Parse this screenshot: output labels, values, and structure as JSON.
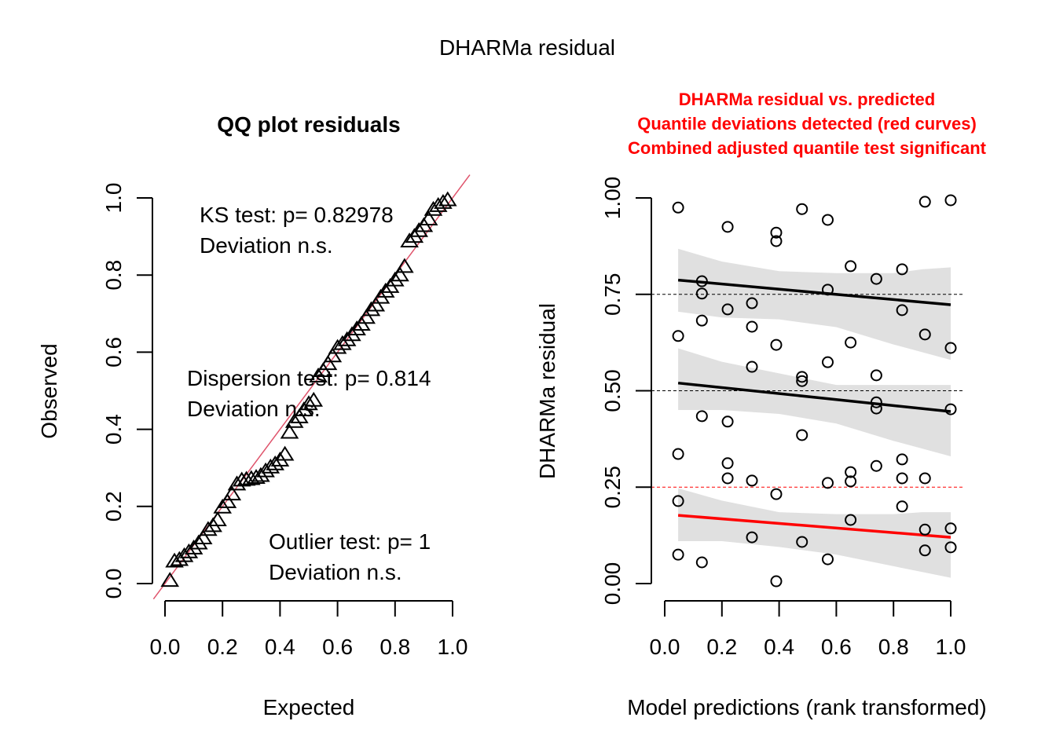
{
  "figure": {
    "title": "DHARMa residual"
  },
  "chart_data": [
    {
      "type": "scatter",
      "title": "QQ plot residuals",
      "xlabel": "Expected",
      "ylabel": "Observed",
      "xlim": [
        0,
        1
      ],
      "ylim": [
        0,
        1
      ],
      "xticks": [
        "0.0",
        "0.2",
        "0.4",
        "0.6",
        "0.8",
        "1.0"
      ],
      "yticks": [
        "0.0",
        "0.2",
        "0.4",
        "0.6",
        "0.8",
        "1.0"
      ],
      "marker": "triangle",
      "reference_line": {
        "from": [
          0,
          0
        ],
        "to": [
          1,
          1
        ],
        "color": "#df536b"
      },
      "annotations": [
        {
          "name": "ks-test",
          "lines": [
            "KS test: p= 0.82978",
            "Deviation  n.s."
          ]
        },
        {
          "name": "dispersion-test",
          "lines": [
            "Dispersion test: p= 0.814",
            "Deviation  n.s."
          ]
        },
        {
          "name": "outlier-test",
          "lines": [
            "Outlier test: p= 1",
            "Deviation  n.s."
          ]
        }
      ],
      "points": [
        {
          "x": 0.017,
          "y": 0.008
        },
        {
          "x": 0.033,
          "y": 0.058
        },
        {
          "x": 0.05,
          "y": 0.062
        },
        {
          "x": 0.067,
          "y": 0.072
        },
        {
          "x": 0.083,
          "y": 0.082
        },
        {
          "x": 0.1,
          "y": 0.092
        },
        {
          "x": 0.117,
          "y": 0.105
        },
        {
          "x": 0.133,
          "y": 0.118
        },
        {
          "x": 0.15,
          "y": 0.14
        },
        {
          "x": 0.167,
          "y": 0.15
        },
        {
          "x": 0.183,
          "y": 0.165
        },
        {
          "x": 0.2,
          "y": 0.198
        },
        {
          "x": 0.217,
          "y": 0.212
        },
        {
          "x": 0.233,
          "y": 0.232
        },
        {
          "x": 0.25,
          "y": 0.258
        },
        {
          "x": 0.267,
          "y": 0.268
        },
        {
          "x": 0.283,
          "y": 0.27
        },
        {
          "x": 0.3,
          "y": 0.272
        },
        {
          "x": 0.317,
          "y": 0.275
        },
        {
          "x": 0.333,
          "y": 0.28
        },
        {
          "x": 0.35,
          "y": 0.292
        },
        {
          "x": 0.367,
          "y": 0.302
        },
        {
          "x": 0.383,
          "y": 0.31
        },
        {
          "x": 0.4,
          "y": 0.32
        },
        {
          "x": 0.417,
          "y": 0.335
        },
        {
          "x": 0.433,
          "y": 0.392
        },
        {
          "x": 0.45,
          "y": 0.42
        },
        {
          "x": 0.467,
          "y": 0.432
        },
        {
          "x": 0.483,
          "y": 0.45
        },
        {
          "x": 0.5,
          "y": 0.466
        },
        {
          "x": 0.517,
          "y": 0.475
        },
        {
          "x": 0.533,
          "y": 0.538
        },
        {
          "x": 0.55,
          "y": 0.552
        },
        {
          "x": 0.567,
          "y": 0.57
        },
        {
          "x": 0.583,
          "y": 0.59
        },
        {
          "x": 0.6,
          "y": 0.612
        },
        {
          "x": 0.617,
          "y": 0.622
        },
        {
          "x": 0.633,
          "y": 0.632
        },
        {
          "x": 0.65,
          "y": 0.645
        },
        {
          "x": 0.667,
          "y": 0.66
        },
        {
          "x": 0.683,
          "y": 0.672
        },
        {
          "x": 0.7,
          "y": 0.69
        },
        {
          "x": 0.717,
          "y": 0.71
        },
        {
          "x": 0.733,
          "y": 0.722
        },
        {
          "x": 0.75,
          "y": 0.742
        },
        {
          "x": 0.767,
          "y": 0.758
        },
        {
          "x": 0.783,
          "y": 0.77
        },
        {
          "x": 0.8,
          "y": 0.787
        },
        {
          "x": 0.817,
          "y": 0.8
        },
        {
          "x": 0.833,
          "y": 0.822
        },
        {
          "x": 0.85,
          "y": 0.888
        },
        {
          "x": 0.867,
          "y": 0.9
        },
        {
          "x": 0.883,
          "y": 0.915
        },
        {
          "x": 0.9,
          "y": 0.928
        },
        {
          "x": 0.917,
          "y": 0.945
        },
        {
          "x": 0.933,
          "y": 0.97
        },
        {
          "x": 0.95,
          "y": 0.98
        },
        {
          "x": 0.967,
          "y": 0.988
        },
        {
          "x": 0.983,
          "y": 0.995
        }
      ]
    },
    {
      "type": "scatter",
      "title_lines": [
        "DHARMa residual vs. predicted",
        "Quantile deviations detected (red curves)",
        "Combined adjusted quantile test significant"
      ],
      "title_color": "#ff0000",
      "xlabel": "Model predictions (rank transformed)",
      "ylabel": "DHARMa residual",
      "xlim": [
        0,
        1
      ],
      "ylim": [
        0,
        1
      ],
      "xticks": [
        "0.0",
        "0.2",
        "0.4",
        "0.6",
        "0.8",
        "1.0"
      ],
      "yticks": [
        "0.00",
        "0.25",
        "0.50",
        "0.75",
        "1.00"
      ],
      "marker": "circle",
      "reference_lines": [
        {
          "y": 0.25,
          "color": "#ff0000",
          "style": "dashed"
        },
        {
          "y": 0.5,
          "color": "#000000",
          "style": "dashed"
        },
        {
          "y": 0.75,
          "color": "#000000",
          "style": "dashed"
        }
      ],
      "quantile_fits": [
        {
          "quantile": 0.75,
          "color": "#000000",
          "x": [
            0.047,
            1.0
          ],
          "y": [
            0.787,
            0.723
          ],
          "band_x": [
            0.047,
            0.2,
            0.4,
            0.6,
            0.8,
            0.9,
            1.0
          ],
          "band_lo": [
            0.705,
            0.69,
            0.685,
            0.665,
            0.62,
            0.6,
            0.58
          ],
          "band_hi": [
            0.868,
            0.835,
            0.81,
            0.805,
            0.805,
            0.815,
            0.82
          ]
        },
        {
          "quantile": 0.5,
          "color": "#000000",
          "x": [
            0.047,
            1.0
          ],
          "y": [
            0.52,
            0.446
          ],
          "band_x": [
            0.047,
            0.2,
            0.4,
            0.6,
            0.8,
            0.9,
            1.0
          ],
          "band_lo": [
            0.45,
            0.45,
            0.44,
            0.415,
            0.37,
            0.35,
            0.33
          ],
          "band_hi": [
            0.61,
            0.575,
            0.545,
            0.515,
            0.515,
            0.515,
            0.515
          ]
        },
        {
          "quantile": 0.25,
          "color": "#ff0000",
          "x": [
            0.047,
            1.0
          ],
          "y": [
            0.177,
            0.12
          ],
          "band_x": [
            0.047,
            0.2,
            0.4,
            0.6,
            0.8,
            0.9,
            1.0
          ],
          "band_lo": [
            0.11,
            0.11,
            0.095,
            0.075,
            0.045,
            0.03,
            0.015
          ],
          "band_hi": [
            0.247,
            0.215,
            0.185,
            0.18,
            0.18,
            0.185,
            0.185
          ]
        }
      ],
      "band_color": "#e0e0e0",
      "points": [
        {
          "x": 0.047,
          "y": 0.975
        },
        {
          "x": 0.047,
          "y": 0.642
        },
        {
          "x": 0.047,
          "y": 0.336
        },
        {
          "x": 0.047,
          "y": 0.214
        },
        {
          "x": 0.047,
          "y": 0.075
        },
        {
          "x": 0.13,
          "y": 0.784
        },
        {
          "x": 0.13,
          "y": 0.752
        },
        {
          "x": 0.13,
          "y": 0.682
        },
        {
          "x": 0.13,
          "y": 0.434
        },
        {
          "x": 0.13,
          "y": 0.055
        },
        {
          "x": 0.22,
          "y": 0.925
        },
        {
          "x": 0.22,
          "y": 0.711
        },
        {
          "x": 0.22,
          "y": 0.42
        },
        {
          "x": 0.22,
          "y": 0.312
        },
        {
          "x": 0.22,
          "y": 0.273
        },
        {
          "x": 0.305,
          "y": 0.727
        },
        {
          "x": 0.305,
          "y": 0.666
        },
        {
          "x": 0.305,
          "y": 0.562
        },
        {
          "x": 0.305,
          "y": 0.267
        },
        {
          "x": 0.305,
          "y": 0.12
        },
        {
          "x": 0.39,
          "y": 0.91
        },
        {
          "x": 0.39,
          "y": 0.888
        },
        {
          "x": 0.39,
          "y": 0.619
        },
        {
          "x": 0.39,
          "y": 0.232
        },
        {
          "x": 0.39,
          "y": 0.006
        },
        {
          "x": 0.48,
          "y": 0.971
        },
        {
          "x": 0.48,
          "y": 0.536
        },
        {
          "x": 0.48,
          "y": 0.525
        },
        {
          "x": 0.48,
          "y": 0.385
        },
        {
          "x": 0.48,
          "y": 0.108
        },
        {
          "x": 0.57,
          "y": 0.943
        },
        {
          "x": 0.57,
          "y": 0.762
        },
        {
          "x": 0.57,
          "y": 0.574
        },
        {
          "x": 0.57,
          "y": 0.261
        },
        {
          "x": 0.57,
          "y": 0.063
        },
        {
          "x": 0.65,
          "y": 0.823
        },
        {
          "x": 0.65,
          "y": 0.625
        },
        {
          "x": 0.65,
          "y": 0.289
        },
        {
          "x": 0.65,
          "y": 0.265
        },
        {
          "x": 0.65,
          "y": 0.165
        },
        {
          "x": 0.74,
          "y": 0.79
        },
        {
          "x": 0.74,
          "y": 0.54
        },
        {
          "x": 0.74,
          "y": 0.47
        },
        {
          "x": 0.74,
          "y": 0.454
        },
        {
          "x": 0.74,
          "y": 0.305
        },
        {
          "x": 0.83,
          "y": 0.815
        },
        {
          "x": 0.83,
          "y": 0.709
        },
        {
          "x": 0.83,
          "y": 0.322
        },
        {
          "x": 0.83,
          "y": 0.273
        },
        {
          "x": 0.83,
          "y": 0.2
        },
        {
          "x": 0.91,
          "y": 0.99
        },
        {
          "x": 0.91,
          "y": 0.646
        },
        {
          "x": 0.91,
          "y": 0.273
        },
        {
          "x": 0.91,
          "y": 0.14
        },
        {
          "x": 0.91,
          "y": 0.086
        },
        {
          "x": 1.0,
          "y": 0.994
        },
        {
          "x": 1.0,
          "y": 0.611
        },
        {
          "x": 1.0,
          "y": 0.452
        },
        {
          "x": 1.0,
          "y": 0.143
        },
        {
          "x": 1.0,
          "y": 0.094
        }
      ]
    }
  ]
}
